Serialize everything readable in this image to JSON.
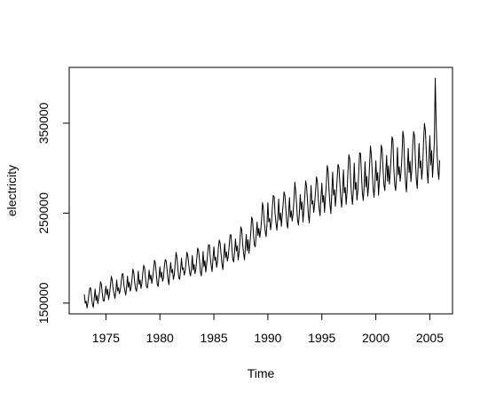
{
  "chart_data": {
    "type": "line",
    "title": "",
    "xlabel": "Time",
    "ylabel": "electricity",
    "xlim": [
      1971.6,
      2007.1
    ],
    "ylim": [
      138000,
      412000
    ],
    "x_ticks": [
      1975,
      1980,
      1985,
      1990,
      1995,
      2000,
      2005
    ],
    "x_tick_labels": [
      "1975",
      "1980",
      "1985",
      "1990",
      "1995",
      "2000",
      "2005"
    ],
    "y_ticks": [
      150000,
      250000,
      350000
    ],
    "y_tick_labels": [
      "150000",
      "250000",
      "350000"
    ],
    "grid": false,
    "series": [
      {
        "frequency": 12,
        "start": 1973.0,
        "end": 2005.917,
        "trend_points": [
          [
            1973,
            152000
          ],
          [
            1976,
            167000
          ],
          [
            1980,
            182000
          ],
          [
            1984,
            196000
          ],
          [
            1988,
            214000
          ],
          [
            1990,
            245000
          ],
          [
            1994,
            262000
          ],
          [
            1996,
            275000
          ],
          [
            2000,
            293000
          ],
          [
            2003,
            305000
          ],
          [
            2005.92,
            318000
          ]
        ],
        "seasonal_amplitude_points": [
          [
            1973,
            14000
          ],
          [
            1985,
            20000
          ],
          [
            1995,
            30000
          ],
          [
            2005.92,
            42000
          ]
        ],
        "max_value": 400000,
        "min_value": 141000
      }
    ]
  }
}
